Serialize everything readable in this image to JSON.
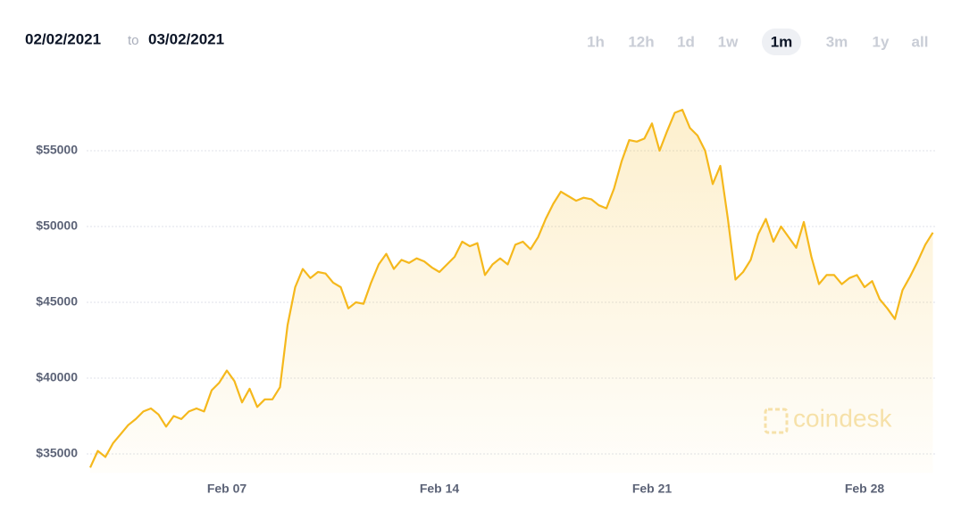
{
  "header": {
    "from": "02/02/2021",
    "to_word": "to",
    "to": "03/02/2021"
  },
  "range_buttons": {
    "labels": [
      "1h",
      "12h",
      "1d",
      "1w",
      "1m",
      "3m",
      "1y",
      "all"
    ],
    "selected": "1m"
  },
  "watermark": "coindesk",
  "chart_data": {
    "type": "area",
    "color": "#f5b81c",
    "grid": true,
    "ylim": [
      33750,
      58500
    ],
    "yticks": [
      {
        "value": 35000,
        "label": "$35000"
      },
      {
        "value": 40000,
        "label": "$40000"
      },
      {
        "value": 45000,
        "label": "$45000"
      },
      {
        "value": 50000,
        "label": "$50000"
      },
      {
        "value": 55000,
        "label": "$55000"
      }
    ],
    "categories": [
      null,
      null,
      null,
      null,
      null,
      null,
      null,
      null,
      null,
      null,
      null,
      null,
      null,
      null,
      null,
      null,
      null,
      null,
      "Feb 07",
      null,
      null,
      null,
      null,
      null,
      null,
      null,
      null,
      null,
      null,
      null,
      null,
      null,
      null,
      null,
      null,
      null,
      null,
      null,
      null,
      null,
      null,
      null,
      null,
      null,
      null,
      null,
      "Feb 14",
      null,
      null,
      null,
      null,
      null,
      null,
      null,
      null,
      null,
      null,
      null,
      null,
      null,
      null,
      null,
      null,
      null,
      null,
      null,
      null,
      null,
      null,
      null,
      null,
      null,
      null,
      null,
      "Feb 21",
      null,
      null,
      null,
      null,
      null,
      null,
      null,
      null,
      null,
      null,
      null,
      null,
      null,
      null,
      null,
      null,
      null,
      null,
      null,
      null,
      null,
      null,
      null,
      null,
      null,
      null,
      null,
      "Feb 28",
      null,
      null,
      null,
      null,
      null,
      null,
      null,
      null,
      null
    ],
    "values": [
      34100,
      35200,
      34800,
      35700,
      36300,
      36900,
      37300,
      37800,
      38000,
      37600,
      36800,
      37500,
      37300,
      37800,
      38000,
      37800,
      39200,
      39700,
      40500,
      39800,
      38400,
      39300,
      38100,
      38600,
      38600,
      39400,
      43500,
      46000,
      47200,
      46600,
      47000,
      46900,
      46300,
      46000,
      44600,
      45000,
      44900,
      46300,
      47500,
      48200,
      47200,
      47800,
      47600,
      47900,
      47700,
      47300,
      47000,
      47500,
      48000,
      49000,
      48700,
      48900,
      46800,
      47500,
      47900,
      47500,
      48800,
      49000,
      48500,
      49300,
      50500,
      51500,
      52300,
      52000,
      51700,
      51900,
      51800,
      51400,
      51200,
      52500,
      54300,
      55700,
      55600,
      55800,
      56800,
      55000,
      56300,
      57500,
      57700,
      56500,
      56000,
      55000,
      52800,
      54000,
      50500,
      46500,
      47000,
      47800,
      49500,
      50500,
      49000,
      50000,
      49300,
      48600,
      50300,
      48000,
      46200,
      46800,
      46800,
      46200,
      46600,
      46800,
      46000,
      46400,
      45200,
      44600,
      43900,
      45800,
      46700,
      47700,
      48800,
      49600
    ]
  }
}
